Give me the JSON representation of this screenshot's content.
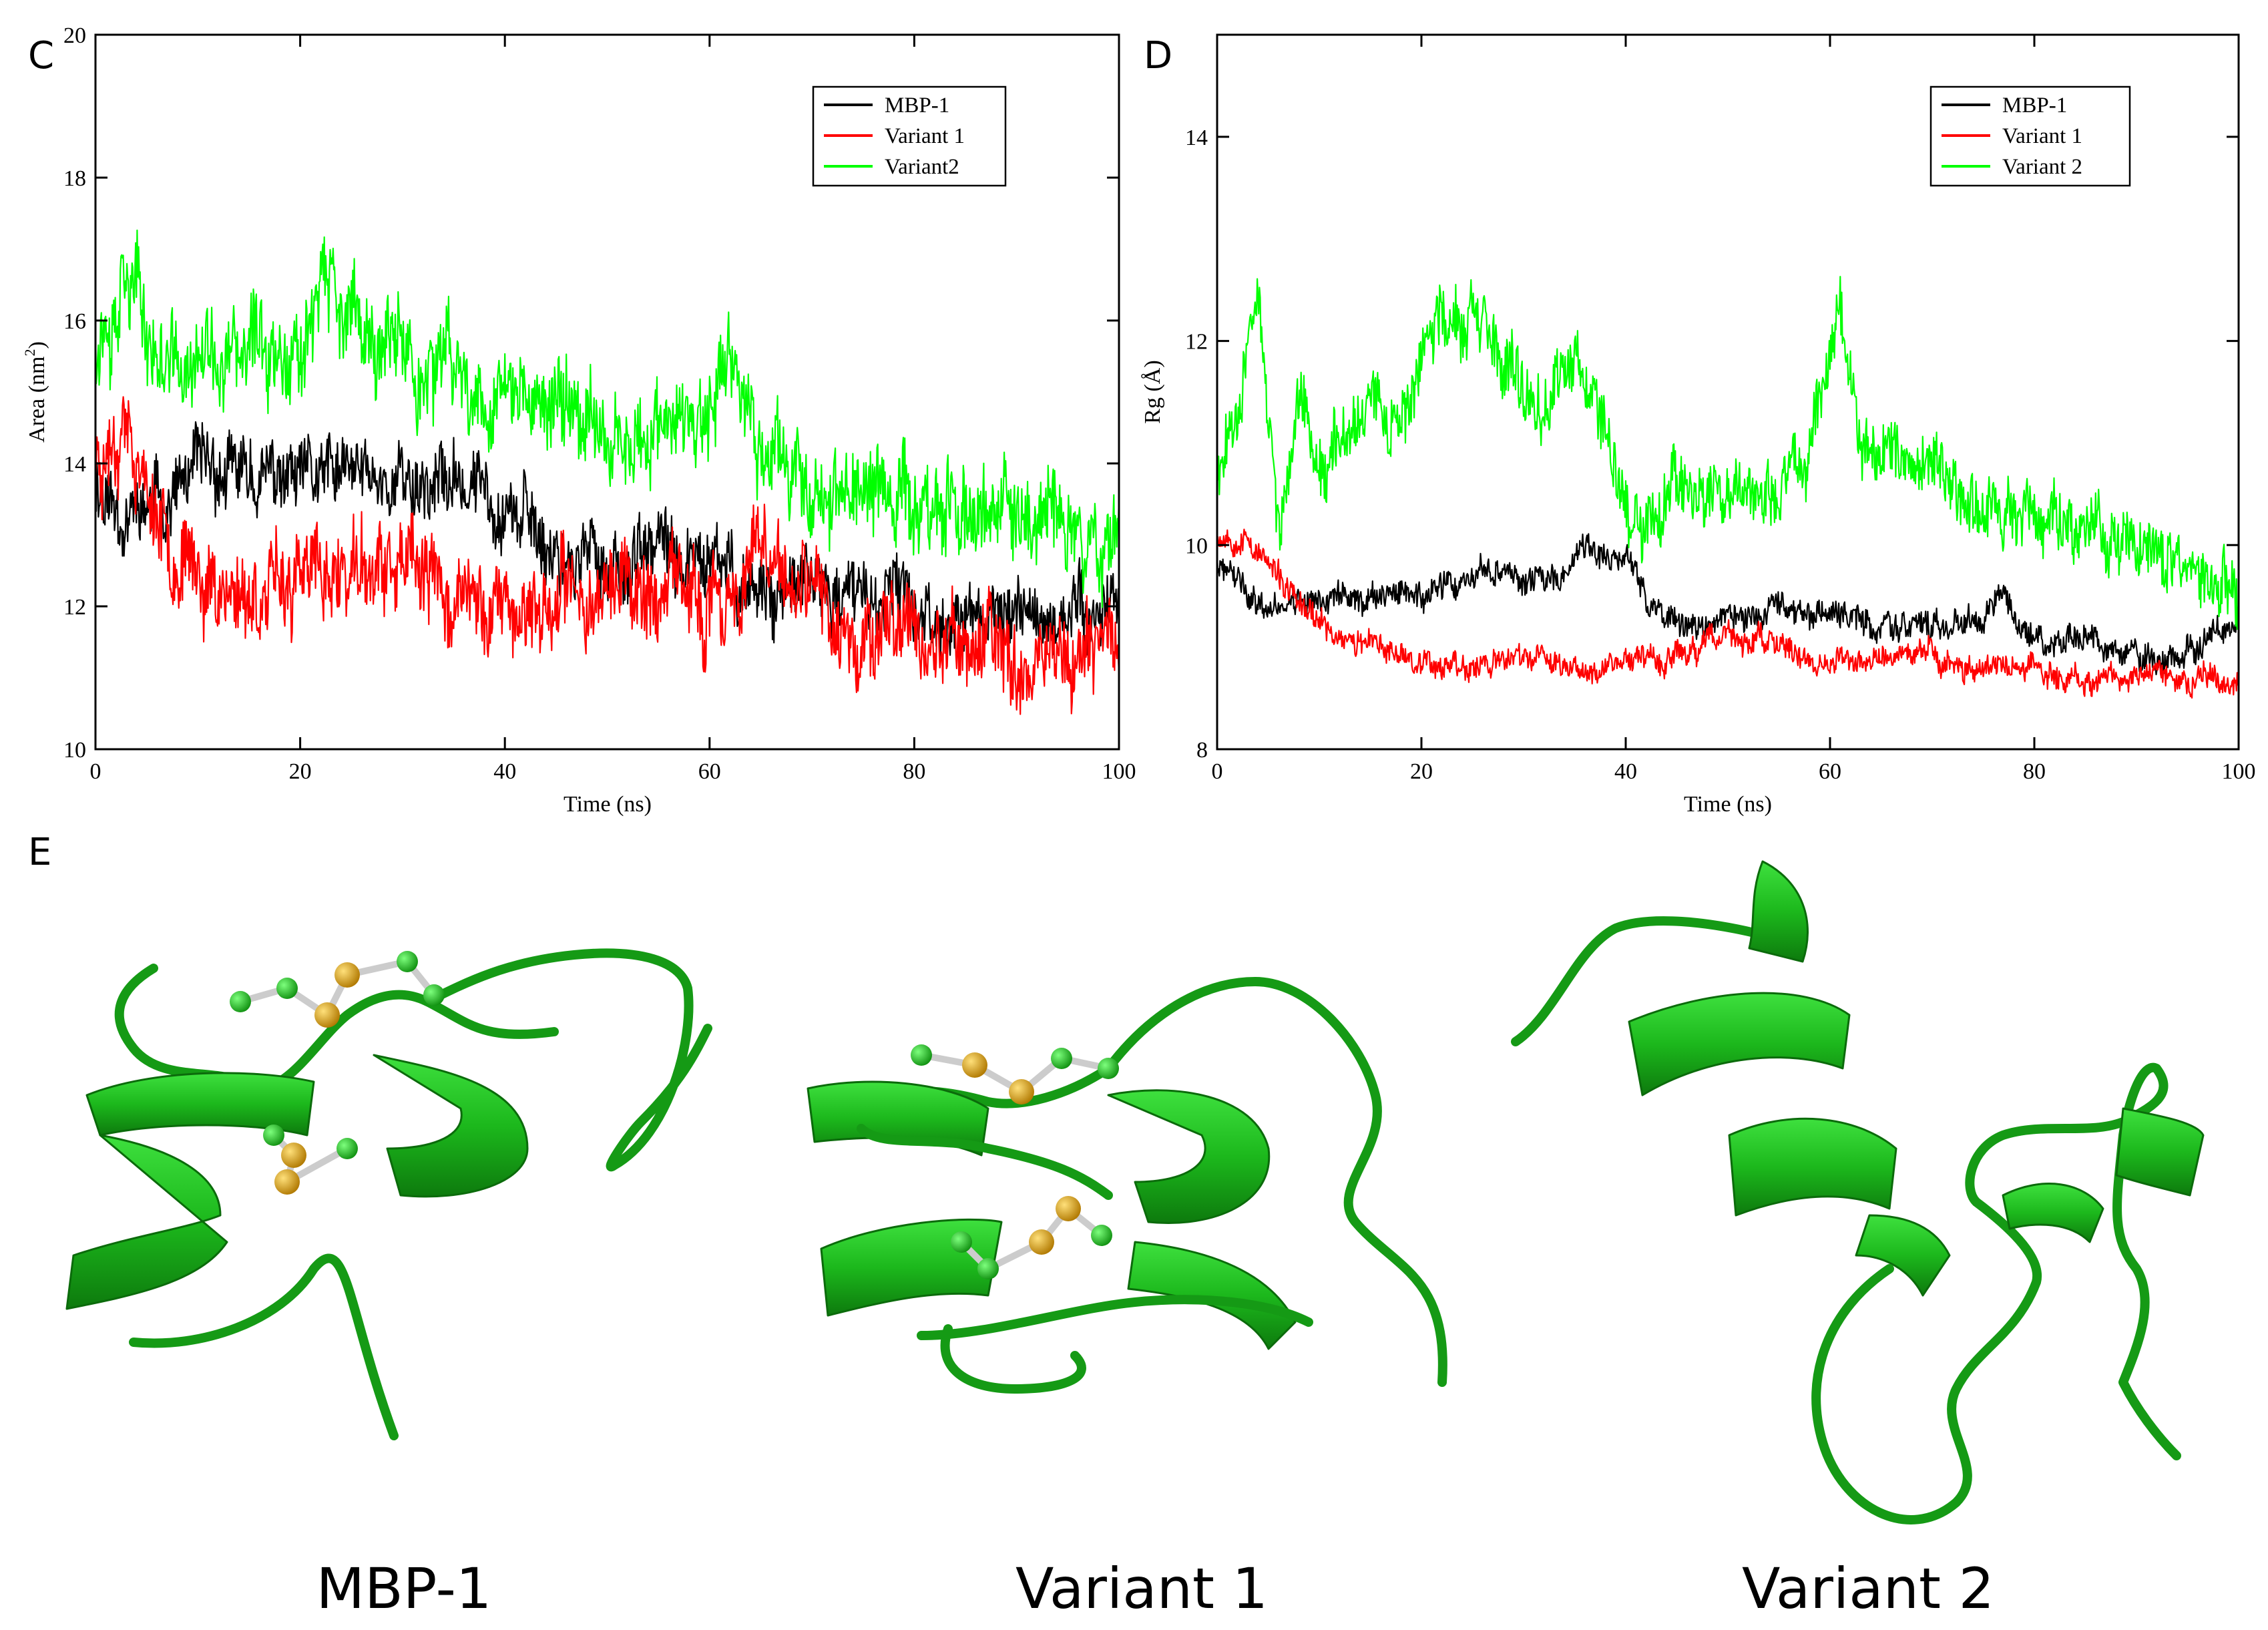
{
  "panels": {
    "c": "C",
    "d": "D",
    "e": "E"
  },
  "structures": {
    "labels": [
      "MBP-1",
      "Variant 1",
      "Variant 2"
    ],
    "ribbon_color": "#1fbf1f",
    "sulfur_color": "#e0a000"
  },
  "chart_data": [
    {
      "type": "line",
      "panel": "C",
      "xlabel": "Time (ns)",
      "ylabel": "Area (nm",
      "ylabel_sup": "2",
      "ylabel_tail": ")",
      "xlim": [
        0,
        100
      ],
      "ylim": [
        10,
        20
      ],
      "xticks": [
        0,
        20,
        40,
        60,
        80,
        100
      ],
      "xtick_labels": [
        "0",
        "20",
        "40",
        "60",
        "80",
        "100"
      ],
      "yticks": [
        10,
        12,
        14,
        16,
        18,
        20
      ],
      "ytick_labels": [
        "10",
        "12",
        "14",
        "16",
        "18",
        "20"
      ],
      "legend_position": "top-right",
      "series": [
        {
          "name": "MBP-1",
          "color": "#000000",
          "noise": 0.5,
          "seed": 11,
          "x": [
            0,
            2,
            5,
            10,
            15,
            20,
            25,
            30,
            35,
            40,
            43,
            45,
            50,
            55,
            60,
            65,
            70,
            75,
            80,
            85,
            90,
            95,
            100
          ],
          "y": [
            13.8,
            13.4,
            13.3,
            13.8,
            13.8,
            13.7,
            13.8,
            13.8,
            13.7,
            13.6,
            13.0,
            12.8,
            12.6,
            12.7,
            12.5,
            12.3,
            12.2,
            12.1,
            12.0,
            11.8,
            11.9,
            11.8,
            12.2
          ]
        },
        {
          "name": "Variant 1",
          "color": "#ff0000",
          "noise": 0.6,
          "seed": 23,
          "x": [
            0,
            3,
            5,
            8,
            10,
            15,
            20,
            25,
            30,
            35,
            40,
            45,
            50,
            55,
            60,
            65,
            70,
            75,
            80,
            85,
            90,
            95,
            100
          ],
          "y": [
            14.0,
            14.8,
            13.6,
            12.9,
            12.4,
            12.2,
            12.3,
            12.5,
            12.4,
            12.1,
            12.0,
            12.0,
            12.4,
            12.2,
            11.9,
            12.6,
            12.0,
            11.7,
            11.6,
            11.5,
            11.4,
            11.4,
            11.6
          ]
        },
        {
          "name": "Variant2",
          "color": "#00ff00",
          "noise": 0.65,
          "seed": 37,
          "x": [
            0,
            2,
            3,
            5,
            8,
            10,
            15,
            20,
            22,
            25,
            30,
            35,
            40,
            45,
            50,
            55,
            60,
            62,
            65,
            70,
            75,
            80,
            85,
            90,
            95,
            100
          ],
          "y": [
            15.8,
            16.4,
            17.2,
            15.8,
            15.2,
            15.3,
            15.5,
            15.8,
            16.6,
            15.9,
            15.4,
            15.2,
            15.0,
            14.8,
            14.6,
            14.4,
            14.4,
            15.5,
            14.1,
            13.8,
            13.6,
            13.5,
            13.3,
            13.3,
            13.1,
            13.0
          ]
        }
      ]
    },
    {
      "type": "line",
      "panel": "D",
      "xlabel": "Time (ns)",
      "ylabel": "Rg (Å)",
      "xlim": [
        0,
        100
      ],
      "ylim": [
        8,
        15
      ],
      "xticks": [
        0,
        20,
        40,
        60,
        80,
        100
      ],
      "xtick_labels": [
        "0",
        "20",
        "40",
        "60",
        "80",
        "100"
      ],
      "yticks": [
        8,
        10,
        12,
        14
      ],
      "ytick_labels": [
        "8",
        "10",
        "12",
        "14"
      ],
      "legend_position": "top-right",
      "series": [
        {
          "name": "MBP-1",
          "color": "#000000",
          "noise": 0.14,
          "seed": 41,
          "x": [
            0,
            2,
            5,
            8,
            10,
            15,
            20,
            25,
            28,
            30,
            33,
            36,
            38,
            40,
            42,
            45,
            50,
            55,
            60,
            65,
            70,
            75,
            77,
            80,
            85,
            90,
            95,
            100
          ],
          "y": [
            9.8,
            9.6,
            9.4,
            9.5,
            9.5,
            9.5,
            9.5,
            9.6,
            9.8,
            9.6,
            9.7,
            10.0,
            9.8,
            9.9,
            9.5,
            9.2,
            9.3,
            9.3,
            9.3,
            9.2,
            9.2,
            9.3,
            9.5,
            9.1,
            9.0,
            8.9,
            8.9,
            9.2
          ]
        },
        {
          "name": "Variant 1",
          "color": "#ff0000",
          "noise": 0.13,
          "seed": 53,
          "x": [
            0,
            3,
            5,
            8,
            10,
            15,
            20,
            25,
            30,
            35,
            40,
            45,
            50,
            55,
            60,
            65,
            70,
            75,
            80,
            85,
            90,
            95,
            100
          ],
          "y": [
            10.1,
            10.1,
            9.8,
            9.4,
            9.2,
            9.0,
            8.9,
            8.8,
            8.9,
            8.8,
            8.9,
            8.9,
            9.1,
            9.0,
            8.8,
            8.9,
            8.9,
            8.8,
            8.8,
            8.7,
            8.7,
            8.7,
            8.7
          ]
        },
        {
          "name": "Variant 2",
          "color": "#00ff00",
          "noise": 0.32,
          "seed": 67,
          "x": [
            0,
            2,
            4,
            6,
            8,
            10,
            12,
            15,
            18,
            22,
            25,
            30,
            35,
            38,
            40,
            42,
            45,
            50,
            55,
            58,
            61,
            63,
            65,
            70,
            75,
            80,
            85,
            90,
            95,
            100
          ],
          "y": [
            10.8,
            11.5,
            12.4,
            10.2,
            11.4,
            10.6,
            11.0,
            11.6,
            11.2,
            12.4,
            12.1,
            11.4,
            11.8,
            11.4,
            10.4,
            10.2,
            10.8,
            10.5,
            10.4,
            11.0,
            12.2,
            11.2,
            10.9,
            10.8,
            10.4,
            10.3,
            10.1,
            10.0,
            9.8,
            9.4
          ]
        }
      ]
    }
  ]
}
